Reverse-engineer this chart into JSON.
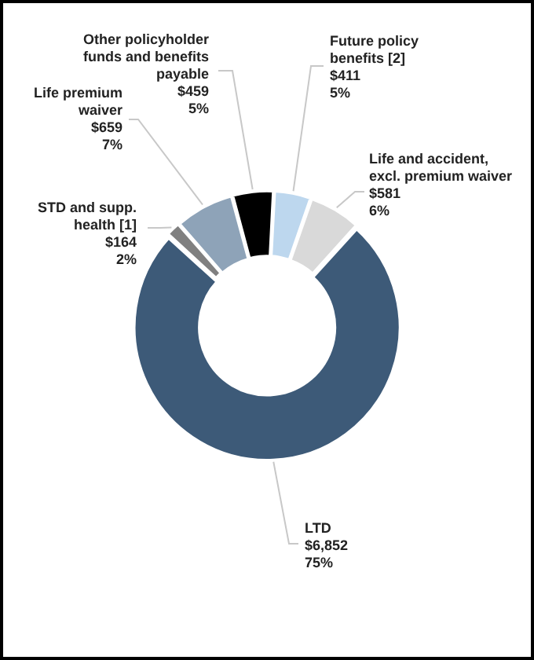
{
  "chart_data": {
    "type": "donut",
    "categories": [
      "Future policy benefits [2]",
      "Life and accident, excl. premium waiver",
      "LTD",
      "STD and supp. health [1]",
      "Life premium waiver",
      "Other policyholder funds and benefits payable"
    ],
    "values": [
      411,
      581,
      6852,
      164,
      659,
      459
    ],
    "value_labels": [
      "$411\n5%",
      "$581\n6%",
      "$6,852\n75%",
      "$164\n2%",
      "$659\n7%",
      "$459\n5%"
    ],
    "colors": [
      "#bdd7ee",
      "#d9d9d9",
      "#3d5a78",
      "#808080",
      "#8ea3b8",
      "#000000"
    ],
    "legend": false
  }
}
